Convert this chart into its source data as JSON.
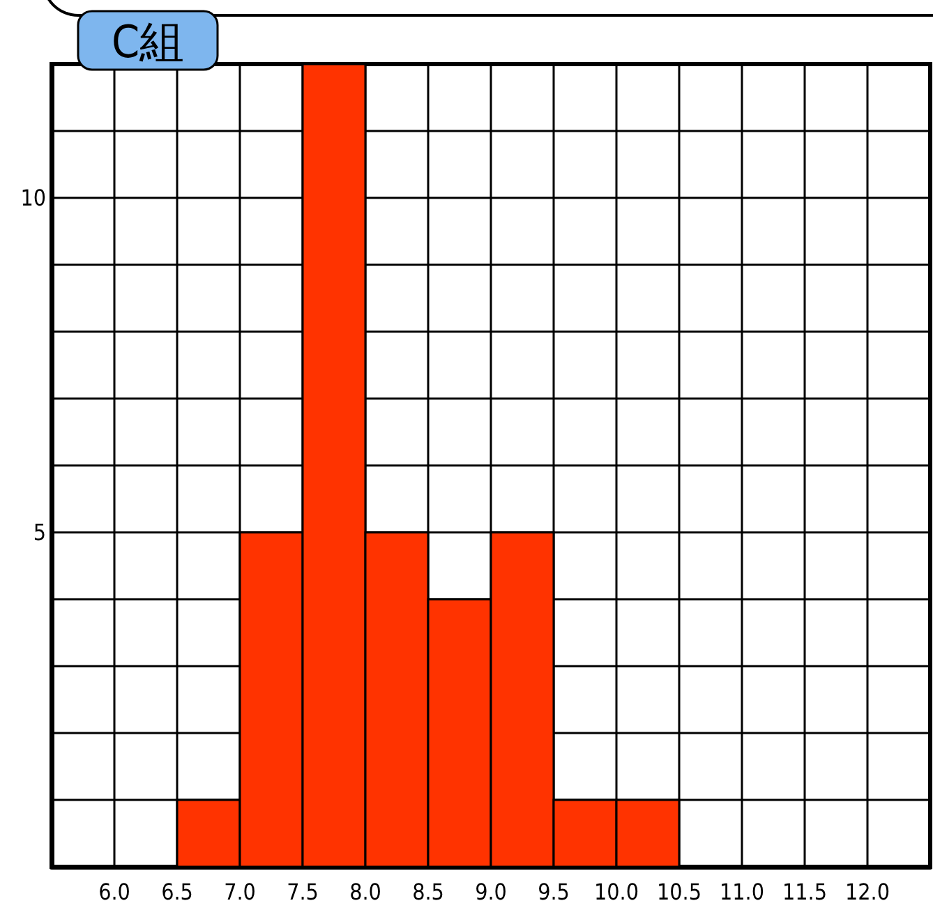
{
  "chart_data": {
    "type": "histogram",
    "title": "C組",
    "bins": [
      6.5,
      7.0,
      7.5,
      8.0,
      8.5,
      9.0,
      9.5,
      10.0,
      10.5
    ],
    "values": [
      1,
      5,
      12,
      5,
      4,
      5,
      1,
      1
    ],
    "color": "#ff3300",
    "xlim": [
      5.5,
      12.5
    ],
    "xticks": [
      {
        "value": 6,
        "label": "6.0"
      },
      {
        "value": 6.5,
        "label": "6.5"
      },
      {
        "value": 7,
        "label": "7.0"
      },
      {
        "value": 7.5,
        "label": "7.5"
      },
      {
        "value": 8,
        "label": "8.0"
      },
      {
        "value": 8.5,
        "label": "8.5"
      },
      {
        "value": 9,
        "label": "9.0"
      },
      {
        "value": 9.5,
        "label": "9.5"
      },
      {
        "value": 10,
        "label": "10.0"
      },
      {
        "value": 10.5,
        "label": "10.5"
      },
      {
        "value": 11,
        "label": "11.0"
      },
      {
        "value": 11.5,
        "label": "11.5"
      },
      {
        "value": 12,
        "label": "12.0"
      }
    ],
    "ylim": [
      0,
      12
    ],
    "yticks": [
      {
        "value": 0,
        "label": null
      },
      {
        "value": 1,
        "label": null
      },
      {
        "value": 2,
        "label": null
      },
      {
        "value": 3,
        "label": null
      },
      {
        "value": 4,
        "label": null
      },
      5,
      {
        "value": 6,
        "label": null
      },
      {
        "value": 7,
        "label": null
      },
      {
        "value": 8,
        "label": null
      },
      {
        "value": 9,
        "label": null
      },
      10,
      {
        "value": 11,
        "label": null
      },
      {
        "value": 12,
        "label": null
      }
    ],
    "grid": true
  }
}
